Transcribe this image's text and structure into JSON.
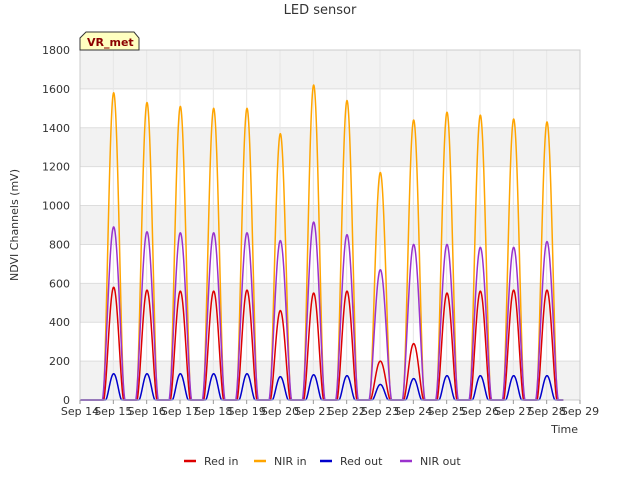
{
  "chart_data": {
    "type": "line",
    "title": "LED sensor",
    "xlabel": "Time",
    "ylabel": "NDVI Channels (mV)",
    "ylim": [
      0,
      1800
    ],
    "yticks": [
      0,
      200,
      400,
      600,
      800,
      1000,
      1200,
      1400,
      1600,
      1800
    ],
    "xlim_days": [
      14,
      29
    ],
    "xticks": [
      {
        "day": 14,
        "label": "Sep 14"
      },
      {
        "day": 15,
        "label": "Sep 15"
      },
      {
        "day": 16,
        "label": "Sep 16"
      },
      {
        "day": 17,
        "label": "Sep 17"
      },
      {
        "day": 18,
        "label": "Sep 18"
      },
      {
        "day": 19,
        "label": "Sep 19"
      },
      {
        "day": 20,
        "label": "Sep 20"
      },
      {
        "day": 21,
        "label": "Sep 21"
      },
      {
        "day": 22,
        "label": "Sep 22"
      },
      {
        "day": 23,
        "label": "Sep 23"
      },
      {
        "day": 24,
        "label": "Sep 24"
      },
      {
        "day": 25,
        "label": "Sep 25"
      },
      {
        "day": 26,
        "label": "Sep 26"
      },
      {
        "day": 27,
        "label": "Sep 27"
      },
      {
        "day": 28,
        "label": "Sep 28"
      },
      {
        "day": 29,
        "label": "Sep 29"
      }
    ],
    "grid": true,
    "legend_position": "bottom-center",
    "badge": "VR_met",
    "days": [
      "Sep 14",
      "Sep 15",
      "Sep 16",
      "Sep 17",
      "Sep 18",
      "Sep 19",
      "Sep 20",
      "Sep 21",
      "Sep 22",
      "Sep 23",
      "Sep 24",
      "Sep 25",
      "Sep 26",
      "Sep 27",
      "Sep 28"
    ],
    "series": [
      {
        "name": "Red in",
        "color": "#dd0000",
        "daily_peaks": [
          0,
          580,
          565,
          560,
          560,
          565,
          460,
          550,
          560,
          200,
          290,
          550,
          560,
          565,
          565
        ]
      },
      {
        "name": "NIR in",
        "color": "#ffa500",
        "daily_peaks": [
          0,
          1580,
          1530,
          1510,
          1500,
          1500,
          1370,
          1620,
          1540,
          1170,
          1440,
          1480,
          1465,
          1445,
          1430
        ]
      },
      {
        "name": "Red out",
        "color": "#0000cc",
        "daily_peaks": [
          0,
          135,
          135,
          135,
          135,
          135,
          120,
          130,
          125,
          80,
          110,
          125,
          125,
          125,
          125
        ]
      },
      {
        "name": "NIR out",
        "color": "#9a32cd",
        "daily_peaks": [
          0,
          890,
          865,
          860,
          860,
          860,
          820,
          915,
          850,
          670,
          800,
          800,
          785,
          785,
          815
        ]
      }
    ]
  }
}
